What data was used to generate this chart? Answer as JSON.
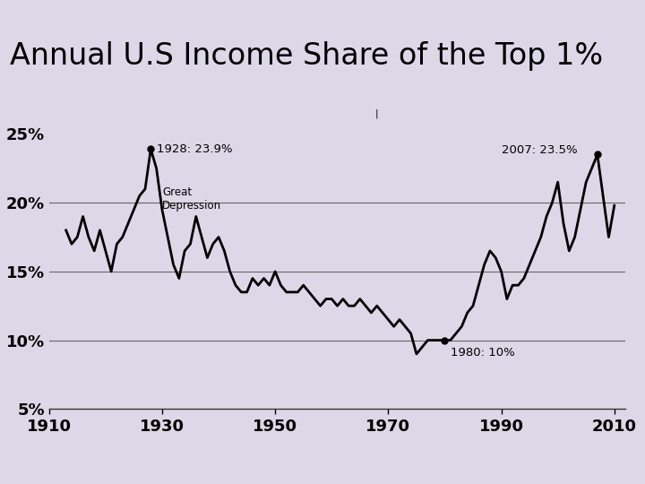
{
  "title": "Annual U.S Income Share of the Top 1%",
  "title_bg_color": "#a688c8",
  "plot_bg_color": "#dcd8e8",
  "line_color": "#000000",
  "line_width": 2.0,
  "xlim": [
    1910,
    2012
  ],
  "ylim": [
    5,
    27
  ],
  "xticks": [
    1910,
    1930,
    1950,
    1970,
    1990,
    2010
  ],
  "ytick_labels": [
    "5%",
    "10%",
    "15%",
    "20%",
    "25%"
  ],
  "ytick_values": [
    5,
    10,
    15,
    20,
    25
  ],
  "hlines": [
    10,
    15,
    20
  ],
  "data": [
    [
      1913,
      18.0
    ],
    [
      1914,
      17.0
    ],
    [
      1915,
      17.5
    ],
    [
      1916,
      19.0
    ],
    [
      1917,
      17.5
    ],
    [
      1918,
      16.5
    ],
    [
      1919,
      18.0
    ],
    [
      1920,
      16.5
    ],
    [
      1921,
      15.0
    ],
    [
      1922,
      17.0
    ],
    [
      1923,
      17.5
    ],
    [
      1924,
      18.5
    ],
    [
      1925,
      19.5
    ],
    [
      1926,
      20.5
    ],
    [
      1927,
      21.0
    ],
    [
      1928,
      23.9
    ],
    [
      1929,
      22.5
    ],
    [
      1930,
      19.5
    ],
    [
      1931,
      17.5
    ],
    [
      1932,
      15.5
    ],
    [
      1933,
      14.5
    ],
    [
      1934,
      16.5
    ],
    [
      1935,
      17.0
    ],
    [
      1936,
      19.0
    ],
    [
      1937,
      17.5
    ],
    [
      1938,
      16.0
    ],
    [
      1939,
      17.0
    ],
    [
      1940,
      17.5
    ],
    [
      1941,
      16.5
    ],
    [
      1942,
      15.0
    ],
    [
      1943,
      14.0
    ],
    [
      1944,
      13.5
    ],
    [
      1945,
      13.5
    ],
    [
      1946,
      14.5
    ],
    [
      1947,
      14.0
    ],
    [
      1948,
      14.5
    ],
    [
      1949,
      14.0
    ],
    [
      1950,
      15.0
    ],
    [
      1951,
      14.0
    ],
    [
      1952,
      13.5
    ],
    [
      1953,
      13.5
    ],
    [
      1954,
      13.5
    ],
    [
      1955,
      14.0
    ],
    [
      1956,
      13.5
    ],
    [
      1957,
      13.0
    ],
    [
      1958,
      12.5
    ],
    [
      1959,
      13.0
    ],
    [
      1960,
      13.0
    ],
    [
      1961,
      12.5
    ],
    [
      1962,
      13.0
    ],
    [
      1963,
      12.5
    ],
    [
      1964,
      12.5
    ],
    [
      1965,
      13.0
    ],
    [
      1966,
      12.5
    ],
    [
      1967,
      12.0
    ],
    [
      1968,
      12.5
    ],
    [
      1969,
      12.0
    ],
    [
      1970,
      11.5
    ],
    [
      1971,
      11.0
    ],
    [
      1972,
      11.5
    ],
    [
      1973,
      11.0
    ],
    [
      1974,
      10.5
    ],
    [
      1975,
      9.0
    ],
    [
      1976,
      9.5
    ],
    [
      1977,
      10.0
    ],
    [
      1978,
      10.0
    ],
    [
      1979,
      10.0
    ],
    [
      1980,
      10.0
    ],
    [
      1981,
      10.0
    ],
    [
      1982,
      10.5
    ],
    [
      1983,
      11.0
    ],
    [
      1984,
      12.0
    ],
    [
      1985,
      12.5
    ],
    [
      1986,
      14.0
    ],
    [
      1987,
      15.5
    ],
    [
      1988,
      16.5
    ],
    [
      1989,
      16.0
    ],
    [
      1990,
      15.0
    ],
    [
      1991,
      13.0
    ],
    [
      1992,
      14.0
    ],
    [
      1993,
      14.0
    ],
    [
      1994,
      14.5
    ],
    [
      1995,
      15.5
    ],
    [
      1996,
      16.5
    ],
    [
      1997,
      17.5
    ],
    [
      1998,
      19.0
    ],
    [
      1999,
      20.0
    ],
    [
      2000,
      21.5
    ],
    [
      2001,
      18.5
    ],
    [
      2002,
      16.5
    ],
    [
      2003,
      17.5
    ],
    [
      2004,
      19.5
    ],
    [
      2005,
      21.5
    ],
    [
      2006,
      22.5
    ],
    [
      2007,
      23.5
    ],
    [
      2008,
      20.5
    ],
    [
      2009,
      17.5
    ],
    [
      2010,
      19.8
    ]
  ]
}
